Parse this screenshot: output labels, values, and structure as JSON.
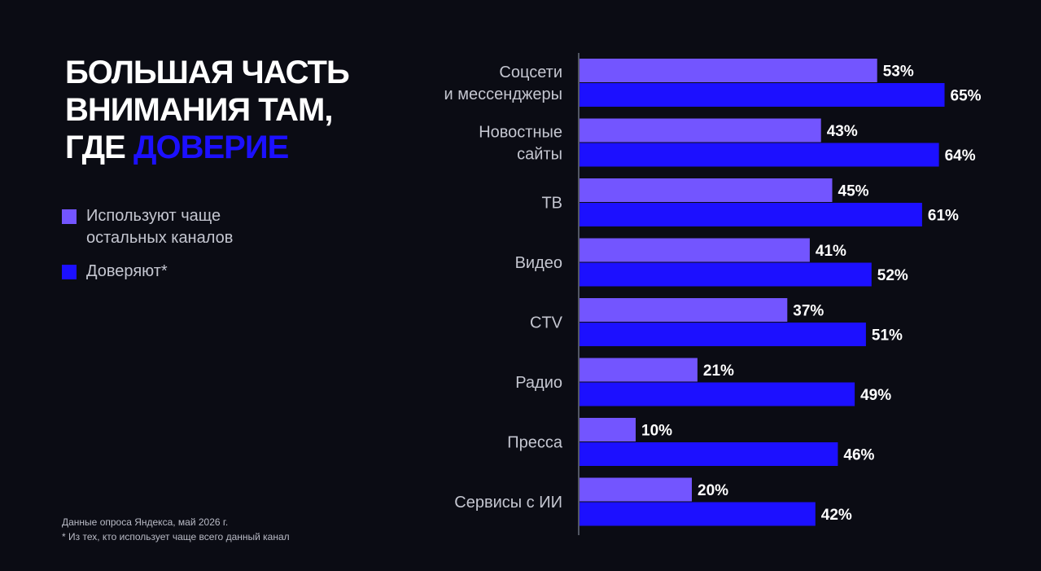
{
  "title": {
    "line1": "БОЛЬШАЯ ЧАСТЬ",
    "line2": "ВНИМАНИЯ ТАМ,",
    "line3_plain": "ГДЕ ",
    "line3_accent": "ДОВЕРИЕ"
  },
  "legend": {
    "usage_label_1": "Используют чаще",
    "usage_label_2": "остальных каналов",
    "trust_label": "Доверяют*"
  },
  "footnote": {
    "source": "Данные опроса Яндекса, май 2026 г.",
    "note": "* Из тех, кто использует чаще всего данный канал"
  },
  "colors": {
    "background": "#0b0c14",
    "usage": "#7355ff",
    "trust": "#1c10ff",
    "accent": "#1c10ff",
    "axis": "#6b6e7d",
    "category_text": "#c4c6d0",
    "value_text": "#ffffff"
  },
  "chart_data": {
    "type": "bar",
    "orientation": "horizontal",
    "categories": [
      [
        "Соцсети",
        "и мессенджеры"
      ],
      [
        "Новостные",
        "сайты"
      ],
      [
        "ТВ"
      ],
      [
        "Видео"
      ],
      [
        "CTV"
      ],
      [
        "Радио"
      ],
      [
        "Пресса"
      ],
      [
        "Сервисы с ИИ"
      ]
    ],
    "series": [
      {
        "name": "Используют чаще остальных каналов",
        "color": "#7355ff",
        "values": [
          53,
          43,
          45,
          41,
          37,
          21,
          10,
          20
        ],
        "labels": [
          "53%",
          "43%",
          "45%",
          "41%",
          "37%",
          "21%",
          "10%",
          "20%"
        ]
      },
      {
        "name": "Доверяют*",
        "color": "#1c10ff",
        "values": [
          65,
          64,
          61,
          52,
          51,
          49,
          46,
          42
        ],
        "labels": [
          "65%",
          "64%",
          "61%",
          "52%",
          "51%",
          "49%",
          "46%",
          "42%"
        ]
      }
    ],
    "xlim": [
      0,
      100
    ],
    "grid": false,
    "legend_position": "left"
  }
}
